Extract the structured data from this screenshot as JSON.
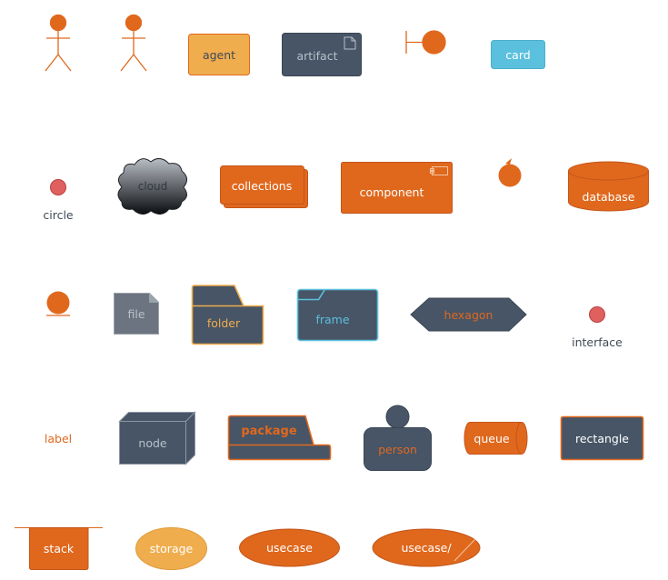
{
  "colors": {
    "orange": "#e0681d",
    "light_orange": "#f0ad4e",
    "slate": "#475566",
    "grey": "#6b7480",
    "sky": "#5bc0de",
    "red": "#e06060",
    "label_dark": "#3f4a56"
  },
  "labels": {
    "agent": "agent",
    "artifact": "artifact",
    "card": "card",
    "circle": "circle",
    "cloud": "cloud",
    "collections": "collections",
    "component": "component",
    "database": "database",
    "file": "file",
    "folder": "folder",
    "frame": "frame",
    "hexagon": "hexagon",
    "interface": "interface",
    "label": "label",
    "node": "node",
    "package": "package",
    "person": "person",
    "queue": "queue",
    "rectangle": "rectangle",
    "stack": "stack",
    "storage": "storage",
    "usecase": "usecase",
    "usecase_business": "usecase/"
  }
}
